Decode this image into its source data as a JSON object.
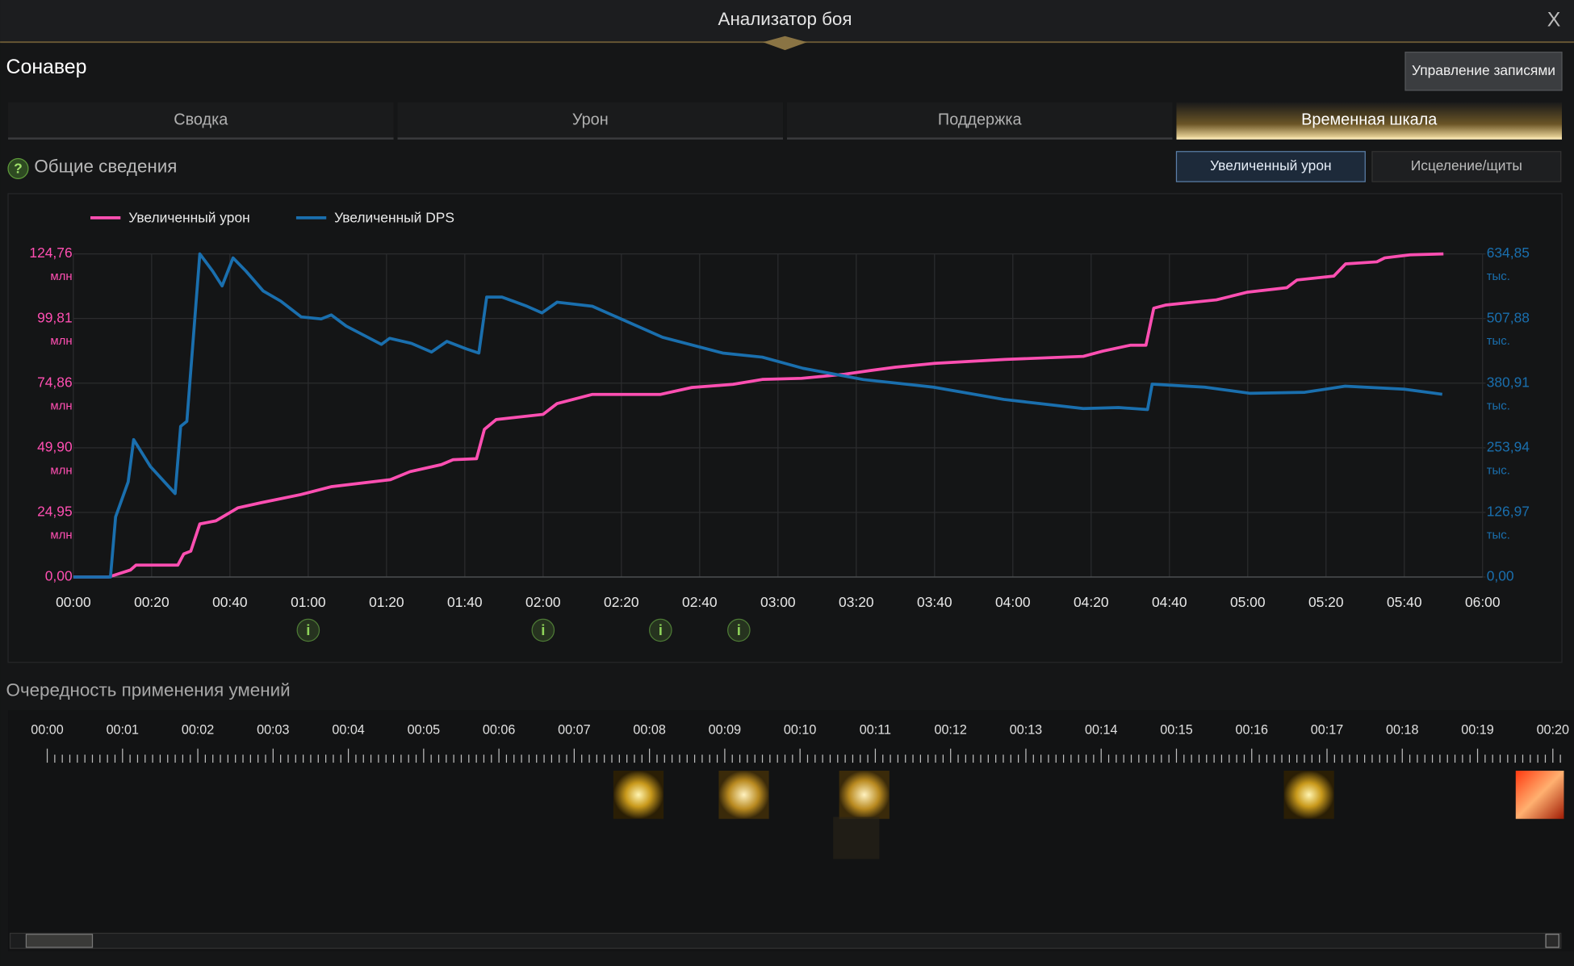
{
  "window": {
    "title": "Анализатор боя",
    "close": "X"
  },
  "character": "Сонавер",
  "manage_button": "Управление записями",
  "tabs": [
    "Сводка",
    "Урон",
    "Поддержка",
    "Временная шкала"
  ],
  "section_title": "Общие сведения",
  "help_icon": "?",
  "toggles": [
    "Увеличенный урон",
    "Исцеление/щиты"
  ],
  "chart_data": {
    "type": "line",
    "xlim": [
      0,
      360
    ],
    "xticks": [
      {
        "value": 0,
        "label": "00:00"
      },
      {
        "value": 20,
        "label": "00:20"
      },
      {
        "value": 40,
        "label": "00:40"
      },
      {
        "value": 60,
        "label": "01:00"
      },
      {
        "value": 80,
        "label": "01:20"
      },
      {
        "value": 100,
        "label": "01:40"
      },
      {
        "value": 120,
        "label": "02:00"
      },
      {
        "value": 140,
        "label": "02:20"
      },
      {
        "value": 160,
        "label": "02:40"
      },
      {
        "value": 180,
        "label": "03:00"
      },
      {
        "value": 200,
        "label": "03:20"
      },
      {
        "value": 220,
        "label": "03:40"
      },
      {
        "value": 240,
        "label": "04:00"
      },
      {
        "value": 260,
        "label": "04:20"
      },
      {
        "value": 280,
        "label": "04:40"
      },
      {
        "value": 300,
        "label": "05:00"
      },
      {
        "value": 320,
        "label": "05:20"
      },
      {
        "value": 340,
        "label": "05:40"
      },
      {
        "value": 360,
        "label": "06:00"
      }
    ],
    "ylim": [
      0,
      124.76
    ],
    "yticks": [
      {
        "value": 0,
        "label": "0,00"
      },
      {
        "value": 24.95,
        "label": "24,95"
      },
      {
        "value": 49.9,
        "label": "49,90"
      },
      {
        "value": 74.86,
        "label": "74,86"
      },
      {
        "value": 99.81,
        "label": "99,81"
      },
      {
        "value": 124.76,
        "label": "124,76"
      }
    ],
    "y_unit": "млн",
    "y2lim": [
      0,
      634.85
    ],
    "y2ticks": [
      {
        "value": 0,
        "label": "0,00"
      },
      {
        "value": 126.97,
        "label": "126,97"
      },
      {
        "value": 253.94,
        "label": "253,94"
      },
      {
        "value": 380.91,
        "label": "380,91"
      },
      {
        "value": 507.88,
        "label": "507,88"
      },
      {
        "value": 634.85,
        "label": "634,85"
      }
    ],
    "y2_unit": "тыс.",
    "grid": true,
    "legend": "top-left",
    "series": [
      {
        "name": "Увеличенный урон",
        "color": "#ff4fb2",
        "axis": "y",
        "x": [
          0,
          9,
          14.6,
          16,
          26.7,
          28.2,
          30,
          32.3,
          36.4,
          39,
          42,
          48,
          58,
          66,
          81,
          86,
          94,
          97,
          103,
          105,
          108,
          120,
          123.6,
          132.6,
          150,
          158,
          168.5,
          176,
          186,
          197,
          204,
          210,
          220,
          238,
          258,
          263,
          270,
          274,
          276,
          279,
          292,
          300,
          310,
          312.6,
          322,
          325,
          333,
          335,
          341.5,
          350
        ],
        "values": [
          0,
          0,
          2.7,
          4.6,
          4.6,
          8.9,
          10,
          20.5,
          21.7,
          24,
          26.7,
          28.7,
          31.8,
          34.9,
          37.6,
          40.7,
          43.4,
          45.3,
          45.7,
          57,
          60.8,
          62.8,
          67,
          70.5,
          70.5,
          73.2,
          74.4,
          76.3,
          76.7,
          78.3,
          79.8,
          81,
          82.5,
          84,
          85.2,
          87.2,
          89.5,
          89.5,
          103.8,
          105,
          107,
          110,
          111.7,
          114.7,
          116.2,
          120.9,
          121.7,
          123.2,
          124.4,
          124.76
        ]
      },
      {
        "name": "Увеличенный DPS",
        "color": "#1a6fae",
        "axis": "y2",
        "x": [
          0,
          9.5,
          10.8,
          14,
          15.4,
          19.7,
          26,
          27.4,
          29,
          32.3,
          35.6,
          38,
          40.8,
          44.1,
          48.5,
          53,
          58.2,
          63.3,
          65.9,
          69.7,
          78.7,
          80.8,
          86.4,
          91.5,
          95.4,
          100.5,
          103.6,
          105.6,
          109.5,
          115.9,
          119.7,
          123.6,
          132.6,
          150.5,
          165.9,
          176,
          186.4,
          201.8,
          219.7,
          237.7,
          258,
          267,
          274.4,
          275.6,
          289,
          300.5,
          314.6,
          324.9,
          340,
          349.7
        ],
        "values": [
          0,
          0,
          118,
          187,
          270,
          217,
          164,
          296,
          306,
          634.85,
          601,
          572,
          627,
          601,
          562,
          542,
          511,
          507,
          515,
          493,
          457,
          469,
          459,
          442,
          463,
          448,
          440,
          550,
          550,
          532,
          519,
          540,
          532,
          471,
          440,
          432,
          410,
          388,
          373,
          349,
          331,
          333,
          329,
          379,
          373,
          361,
          363,
          375,
          369,
          359
        ]
      }
    ],
    "event_markers": [
      {
        "x": 60,
        "label": "i"
      },
      {
        "x": 120,
        "label": "i"
      },
      {
        "x": 150,
        "label": "i"
      },
      {
        "x": 170,
        "label": "i"
      }
    ]
  },
  "skill_sequence": {
    "title": "Очередность применения умений",
    "ticks": [
      "00:00",
      "00:01",
      "00:02",
      "00:03",
      "00:04",
      "00:05",
      "00:06",
      "00:07",
      "00:08",
      "00:09",
      "00:10",
      "00:11",
      "00:12",
      "00:13",
      "00:14",
      "00:15",
      "00:16",
      "00:17",
      "00:18",
      "00:19",
      "00:20"
    ]
  }
}
